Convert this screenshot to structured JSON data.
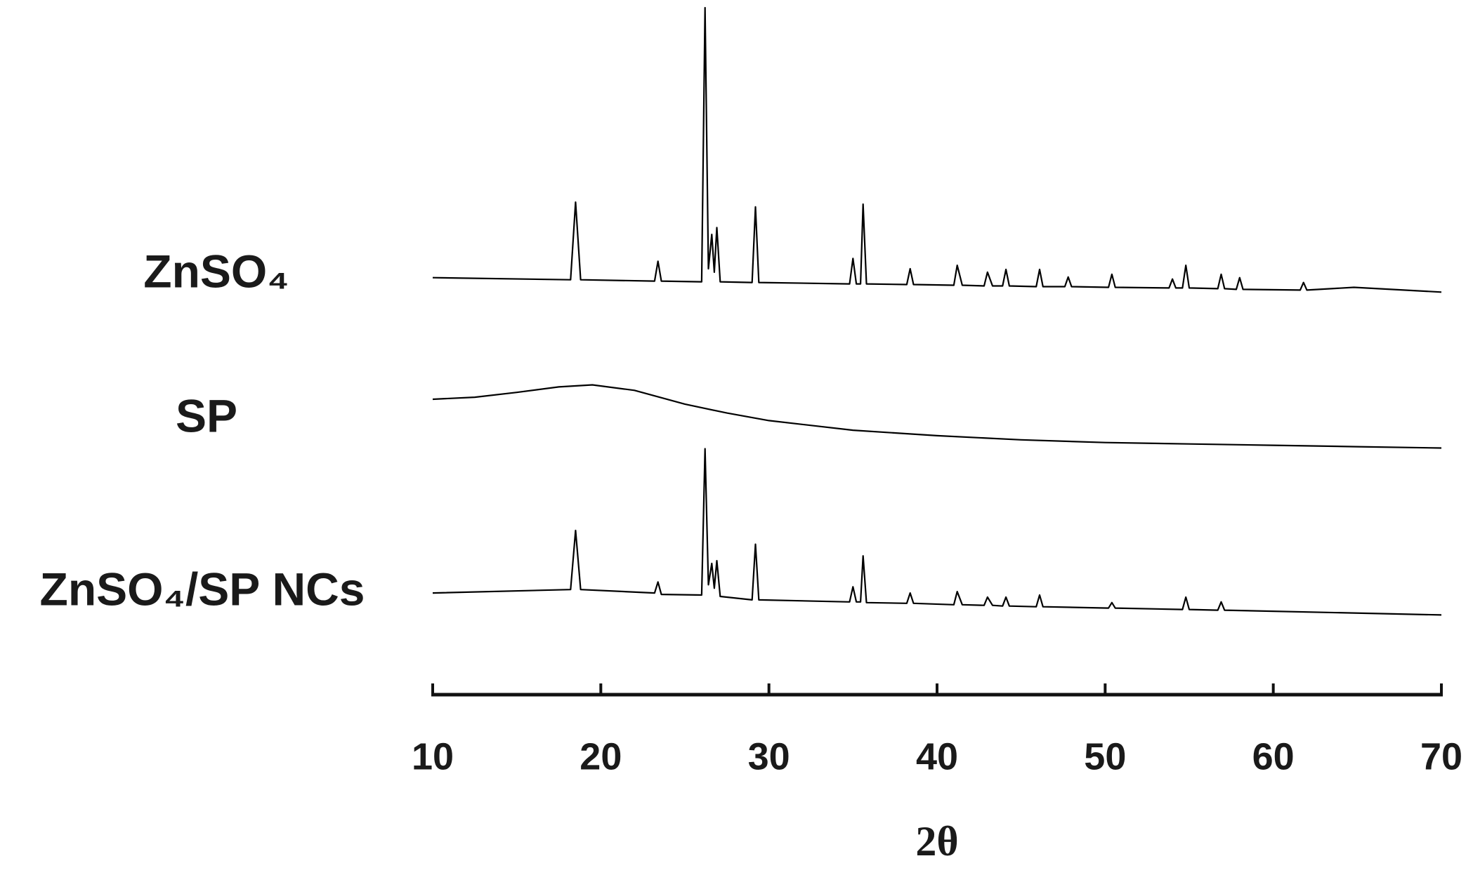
{
  "chart_data": {
    "type": "line",
    "xlabel": "2θ",
    "xlim": [
      10,
      70
    ],
    "xticks": [
      10,
      20,
      30,
      40,
      50,
      60,
      70
    ],
    "ylim": [
      0,
      100
    ],
    "series": [
      {
        "name": "ZnSO₄",
        "color": "#000000",
        "x": [
          10,
          18.2,
          18.5,
          18.8,
          23.2,
          23.4,
          23.6,
          26.0,
          26.2,
          26.4,
          26.6,
          26.75,
          26.9,
          27.1,
          29.0,
          29.2,
          29.4,
          34.8,
          35.0,
          35.2,
          35.45,
          35.6,
          35.8,
          38.2,
          38.4,
          38.6,
          41.0,
          41.2,
          41.5,
          42.8,
          43.0,
          43.3,
          43.9,
          44.1,
          44.3,
          45.9,
          46.1,
          46.3,
          47.6,
          47.8,
          48.0,
          50.2,
          50.4,
          50.6,
          53.8,
          54.0,
          54.2,
          54.6,
          54.8,
          55.0,
          56.7,
          56.9,
          57.1,
          57.8,
          58.0,
          58.2,
          61.6,
          61.8,
          62.0,
          64.8,
          70
        ],
        "values": [
          60.7,
          60.4,
          71.7,
          60.4,
          60.2,
          63.1,
          60.2,
          60.1,
          100,
          62.0,
          67.0,
          61.5,
          68.0,
          60.1,
          60.0,
          71.0,
          60.0,
          59.8,
          63.5,
          59.8,
          59.8,
          71.4,
          59.8,
          59.7,
          62.0,
          59.7,
          59.6,
          62.5,
          59.6,
          59.5,
          61.5,
          59.5,
          59.5,
          61.9,
          59.5,
          59.4,
          61.9,
          59.4,
          59.4,
          60.8,
          59.4,
          59.3,
          61.2,
          59.3,
          59.2,
          60.5,
          59.2,
          59.2,
          62.5,
          59.2,
          59.1,
          61.2,
          59.1,
          59.0,
          60.7,
          59.0,
          58.9,
          60.0,
          58.9,
          59.3,
          58.6
        ]
      },
      {
        "name": "SP",
        "color": "#000000",
        "x": [
          10,
          12.5,
          15,
          17.5,
          19.5,
          22,
          25,
          27.5,
          30,
          35,
          40,
          45,
          50,
          55,
          60,
          65,
          70
        ],
        "values": [
          43.0,
          43.3,
          44.0,
          44.8,
          45.1,
          44.3,
          42.3,
          41.0,
          39.9,
          38.5,
          37.7,
          37.1,
          36.7,
          36.5,
          36.3,
          36.1,
          35.9
        ]
      },
      {
        "name": "ZnSO₄/SP NCs",
        "color": "#000000",
        "x": [
          10,
          18.2,
          18.5,
          18.8,
          23.2,
          23.4,
          23.6,
          26.0,
          26.2,
          26.4,
          26.6,
          26.75,
          26.9,
          27.1,
          29.0,
          29.2,
          29.4,
          34.8,
          35.0,
          35.2,
          35.45,
          35.6,
          35.8,
          38.2,
          38.4,
          38.6,
          41.0,
          41.2,
          41.5,
          42.8,
          43.0,
          43.3,
          43.9,
          44.1,
          44.3,
          45.9,
          46.1,
          46.3,
          50.2,
          50.4,
          50.6,
          54.6,
          54.8,
          55.0,
          56.7,
          56.9,
          57.1,
          70
        ],
        "values": [
          14.8,
          15.3,
          23.9,
          15.3,
          14.8,
          16.4,
          14.6,
          14.5,
          35.8,
          16.0,
          19.1,
          15.5,
          19.5,
          14.3,
          13.8,
          21.9,
          13.8,
          13.5,
          15.7,
          13.5,
          13.5,
          20.2,
          13.4,
          13.3,
          14.8,
          13.3,
          13.1,
          15.0,
          13.1,
          13.0,
          14.2,
          13.0,
          12.9,
          14.2,
          12.9,
          12.8,
          14.5,
          12.8,
          12.6,
          13.4,
          12.6,
          12.4,
          14.2,
          12.4,
          12.3,
          13.5,
          12.3,
          11.6
        ]
      }
    ]
  }
}
